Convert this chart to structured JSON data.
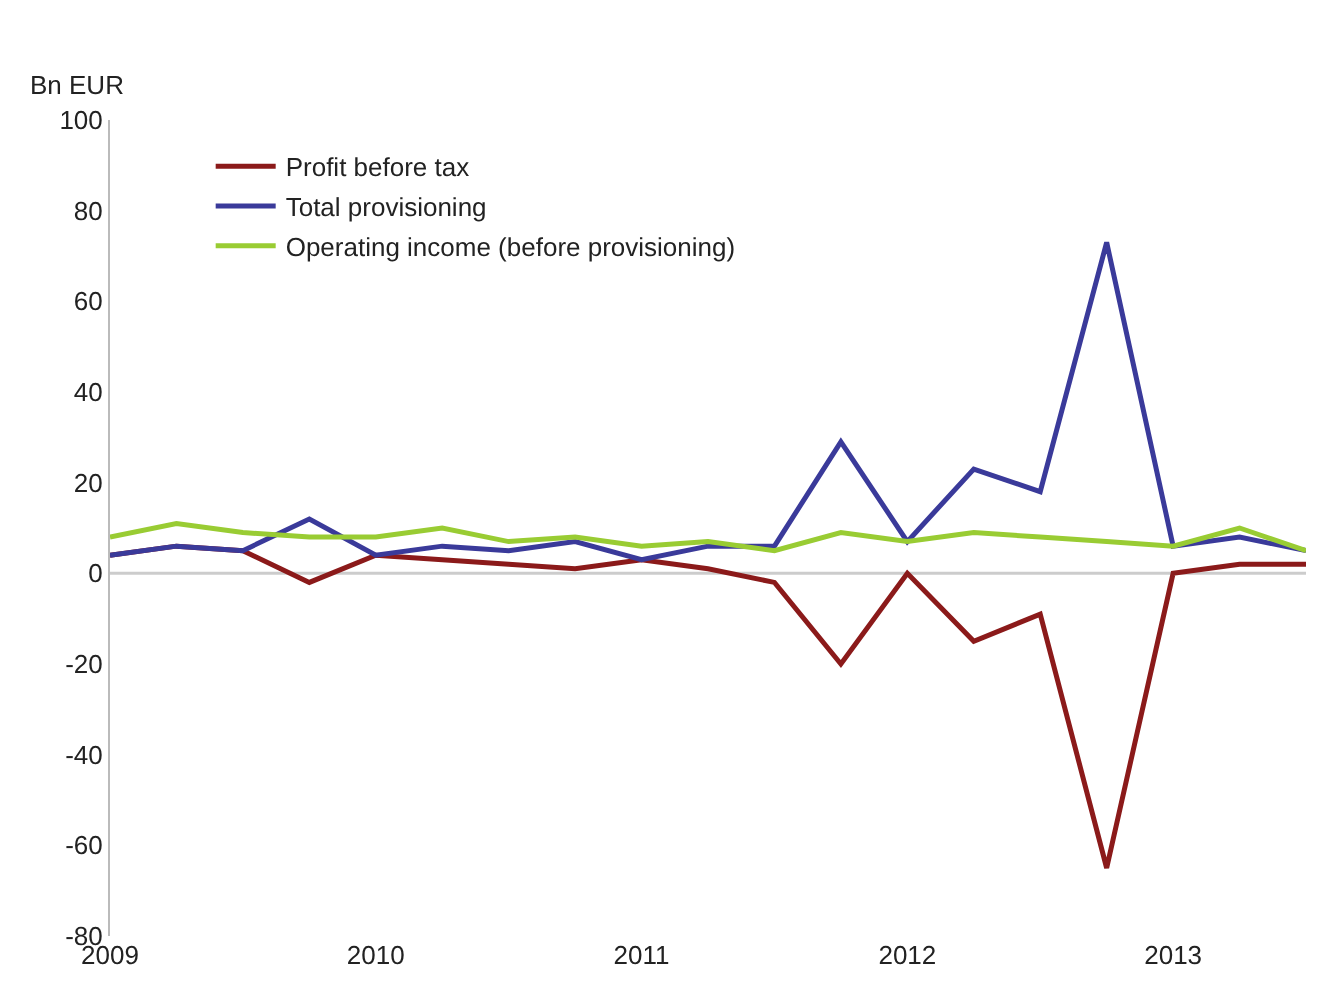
{
  "chart_data": {
    "type": "line",
    "ylabel": "Bn EUR",
    "x": [
      2009,
      2009.25,
      2009.5,
      2009.75,
      2010,
      2010.25,
      2010.5,
      2010.75,
      2011,
      2011.25,
      2011.5,
      2011.75,
      2012,
      2012.25,
      2012.5,
      2012.75,
      2013,
      2013.25,
      2013.5
    ],
    "series": [
      {
        "name": "Profit before tax",
        "color": "#8b1a1a",
        "values": [
          4,
          6,
          5,
          -2,
          4,
          3,
          2,
          1,
          3,
          1,
          -2,
          -20,
          0,
          -15,
          -9,
          -65,
          0,
          2,
          2
        ]
      },
      {
        "name": "Total provisioning",
        "color": "#3a3a9a",
        "values": [
          4,
          6,
          5,
          12,
          4,
          6,
          5,
          7,
          3,
          6,
          6,
          29,
          7,
          23,
          18,
          73,
          6,
          8,
          5
        ]
      },
      {
        "name": "Operating income (before provisioning)",
        "color": "#99cc33",
        "values": [
          8,
          11,
          9,
          8,
          8,
          10,
          7,
          8,
          6,
          7,
          5,
          9,
          7,
          9,
          8,
          7,
          6,
          10,
          5
        ]
      }
    ],
    "xlim": [
      2009,
      2013.5
    ],
    "xticks": [
      2009,
      2010,
      2011,
      2012,
      2013
    ],
    "ylim": [
      -80,
      100
    ],
    "yticks": [
      -80,
      -60,
      -40,
      -20,
      0,
      20,
      40,
      60,
      80,
      100
    ],
    "ref_lines": [
      {
        "axis": "y",
        "value": 0,
        "color": "#cccccc"
      }
    ],
    "grid": false,
    "legend": "top left",
    "marker": "none",
    "line_style": "solid"
  }
}
